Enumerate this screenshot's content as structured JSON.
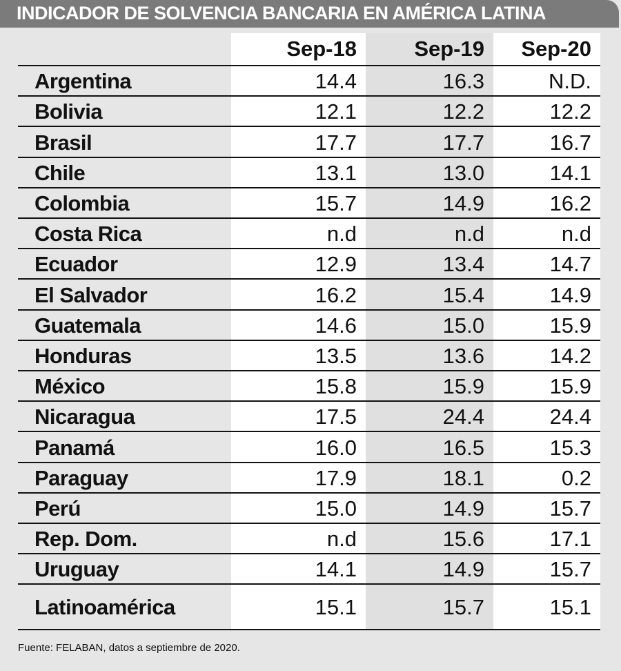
{
  "header": {
    "title": "INDICADOR DE SOLVENCIA BANCARIA EN AMÉRICA LATINA"
  },
  "table": {
    "columns": [
      "Sep-18",
      "Sep-19",
      "Sep-20"
    ],
    "rows": [
      {
        "label": "Argentina",
        "values": [
          "14.4",
          "16.3",
          "N.D."
        ]
      },
      {
        "label": "Bolivia",
        "values": [
          "12.1",
          "12.2",
          "12.2"
        ]
      },
      {
        "label": "Brasil",
        "values": [
          "17.7",
          "17.7",
          "16.7"
        ]
      },
      {
        "label": "Chile",
        "values": [
          "13.1",
          "13.0",
          "14.1"
        ]
      },
      {
        "label": "Colombia",
        "values": [
          "15.7",
          "14.9",
          "16.2"
        ]
      },
      {
        "label": "Costa Rica",
        "values": [
          "n.d",
          "n.d",
          "n.d"
        ]
      },
      {
        "label": "Ecuador",
        "values": [
          "12.9",
          "13.4",
          "14.7"
        ]
      },
      {
        "label": "El Salvador",
        "values": [
          "16.2",
          "15.4",
          "14.9"
        ]
      },
      {
        "label": "Guatemala",
        "values": [
          "14.6",
          "15.0",
          "15.9"
        ]
      },
      {
        "label": "Honduras",
        "values": [
          "13.5",
          "13.6",
          "14.2"
        ]
      },
      {
        "label": "México",
        "values": [
          "15.8",
          "15.9",
          "15.9"
        ]
      },
      {
        "label": "Nicaragua",
        "values": [
          "17.5",
          "24.4",
          "24.4"
        ]
      },
      {
        "label": "Panamá",
        "values": [
          "16.0",
          "16.5",
          "15.3"
        ]
      },
      {
        "label": "Paraguay",
        "values": [
          "17.9",
          "18.1",
          "0.2"
        ]
      },
      {
        "label": "Perú",
        "values": [
          "15.0",
          "14.9",
          "15.7"
        ]
      },
      {
        "label": "Rep. Dom.",
        "values": [
          "n.d",
          "15.6",
          "17.1"
        ]
      },
      {
        "label": "Uruguay",
        "values": [
          "14.1",
          "14.9",
          "15.7"
        ]
      },
      {
        "label": "Latinoamérica",
        "values": [
          "15.1",
          "15.7",
          "15.1"
        ]
      }
    ]
  },
  "footnote": "Fuente: FELABAN, datos a septiembre de 2020."
}
